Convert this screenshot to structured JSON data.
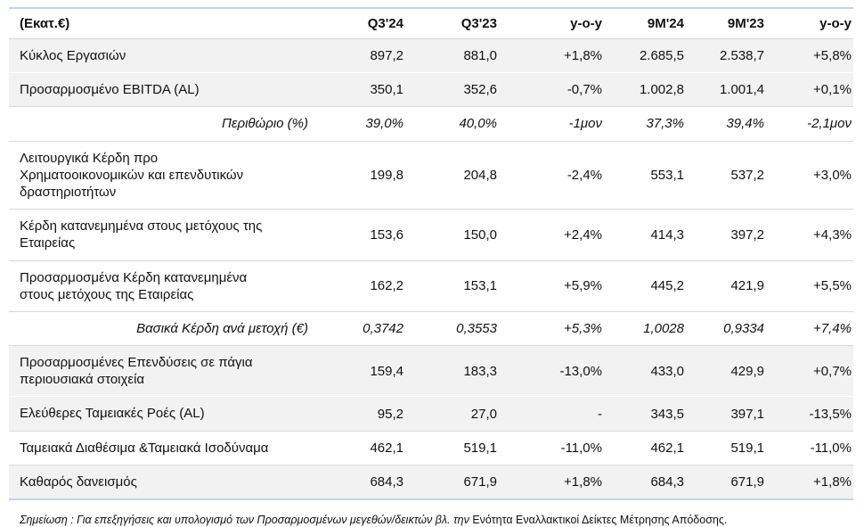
{
  "table": {
    "unit_label": "(Εκατ.€)",
    "columns": [
      "Q3'24",
      "Q3'23",
      "y-o-y",
      "9M'24",
      "9M'23",
      "y-o-y"
    ],
    "rows": [
      {
        "label": "Κύκλος Εργασιών",
        "variant": "shaded",
        "values": [
          "897,2",
          "881,0",
          "+1,8%",
          "2.685,5",
          "2.538,7",
          "+5,8%"
        ]
      },
      {
        "label": "Προσαρμοσμένο EBITDA (AL)",
        "variant": "shaded",
        "values": [
          "350,1",
          "352,6",
          "-0,7%",
          "1.002,8",
          "1.001,4",
          "+0,1%"
        ]
      },
      {
        "label": "Περιθώριο (%)",
        "variant": "italic",
        "values": [
          "39,0%",
          "40,0%",
          "-1μον",
          "37,3%",
          "39,4%",
          "-2,1μον"
        ]
      },
      {
        "label": "Λειτουργικά Κέρδη προ\nΧρηματοοικονομικών και επενδυτικών\nδραστηριοτήτων",
        "variant": "plain",
        "values": [
          "199,8",
          "204,8",
          "-2,4%",
          "553,1",
          "537,2",
          "+3,0%"
        ]
      },
      {
        "label": "Κέρδη κατανεμημένα στους μετόχους της\nΕταιρείας",
        "variant": "plain",
        "values": [
          "153,6",
          "150,0",
          "+2,4%",
          "414,3",
          "397,2",
          "+4,3%"
        ]
      },
      {
        "label": "Προσαρμοσμένα Κέρδη κατανεμημένα\nστους μετόχους της Εταιρείας",
        "variant": "plain",
        "values": [
          "162,2",
          "153,1",
          "+5,9%",
          "445,2",
          "421,9",
          "+5,5%"
        ]
      },
      {
        "label": "Βασικά Κέρδη ανά μετοχή (€)",
        "variant": "italic",
        "values": [
          "0,3742",
          "0,3553",
          "+5,3%",
          "1,0028",
          "0,9334",
          "+7,4%"
        ]
      },
      {
        "label": "Προσαρμοσμένες Επενδύσεις σε πάγια\nπεριουσιακά στοιχεία",
        "variant": "shaded",
        "values": [
          "159,4",
          "183,3",
          "-13,0%",
          "433,0",
          "429,9",
          "+0,7%"
        ]
      },
      {
        "label": "Ελεύθερες Ταμειακές Ροές (AL)",
        "variant": "shaded",
        "values": [
          "95,2",
          "27,0",
          "-",
          "343,5",
          "397,1",
          "-13,5%"
        ]
      },
      {
        "label": "Ταμειακά Διαθέσιμα &Ταμειακά Ισοδύναμα",
        "variant": "plain",
        "values": [
          "462,1",
          "519,1",
          "-11,0%",
          "462,1",
          "519,1",
          "-11,0%"
        ]
      },
      {
        "label": "Καθαρός δανεισμός",
        "variant": "shaded",
        "values": [
          "684,3",
          "671,9",
          "+1,8%",
          "684,3",
          "671,9",
          "+1,8%"
        ]
      }
    ]
  },
  "note": {
    "italic_lead": "Σημείωση : Για επεξηγήσεις και υπολογισμό των Προσαρμοσμένων μεγεθών/δεικτών",
    "misspelled_word": "βλ.",
    "italic_tail": "την",
    "regular_text": "Ενότητα Εναλλακτικοί Δείκτες Μέτρησης Απόδοσης."
  },
  "colors": {
    "shaded_row_bg": "#f2f2f2",
    "row_separator": "#d9d9d9",
    "table_top_rule": "#c3d3e6",
    "table_bottom_rule": "#bdd6ee",
    "spellcheck_underline": "#d10000",
    "text": "#111111"
  }
}
